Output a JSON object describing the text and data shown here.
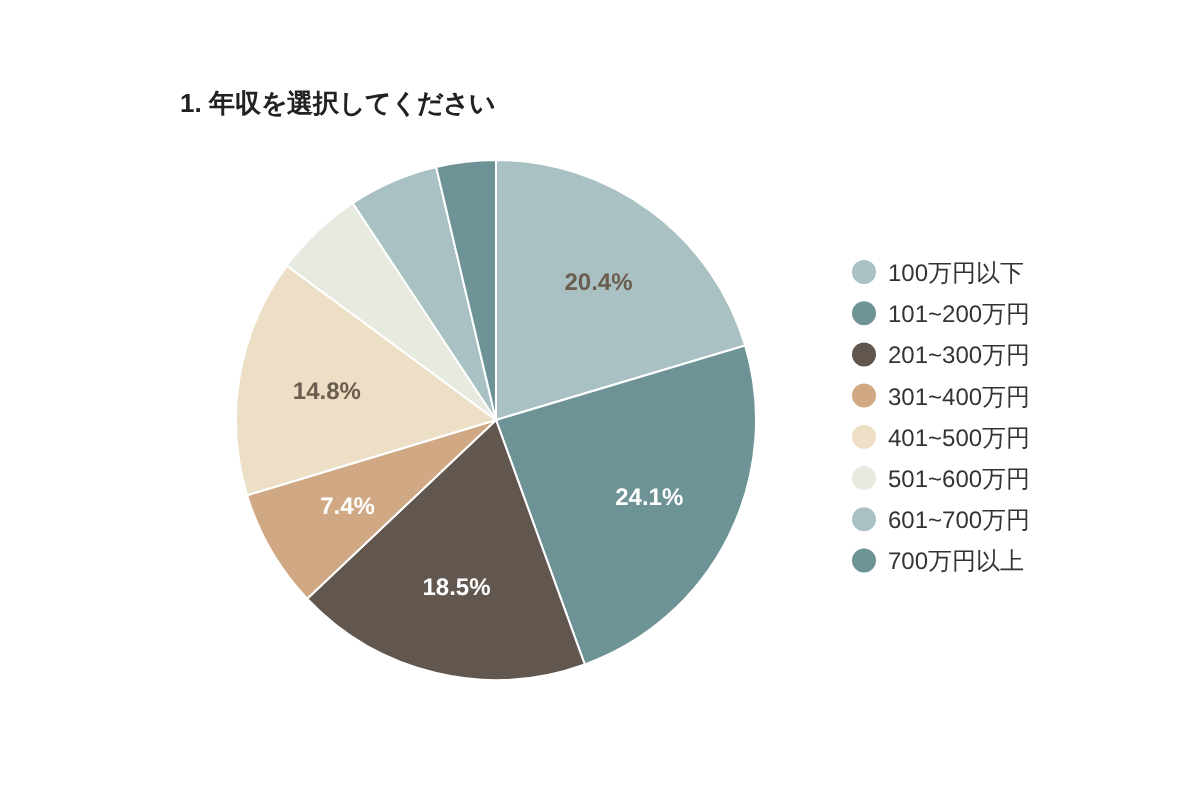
{
  "chart_data": {
    "type": "pie",
    "title": "1. 年収を選択してください",
    "legend": "right",
    "categories": [
      "100万円以下",
      "101~200万円",
      "201~300万円",
      "301~400万円",
      "401~500万円",
      "501~600万円",
      "601~700万円",
      "700万円以上"
    ],
    "values": [
      20.4,
      24.1,
      18.5,
      7.4,
      14.8,
      5.6,
      5.6,
      3.7
    ],
    "value_labels": [
      "20.4%",
      "24.1%",
      "18.5%",
      "7.4%",
      "14.8%",
      null,
      null,
      null
    ],
    "colors": [
      "#a9c1c2",
      "#6e9397",
      "#62574f",
      "#d0a984",
      "#ecdfc6",
      "#e7eadf",
      "#a9c1c2",
      "#6e9397"
    ]
  }
}
